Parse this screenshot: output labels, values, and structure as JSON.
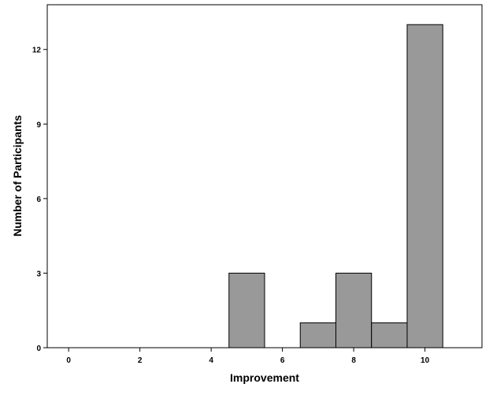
{
  "chart_data": {
    "type": "bar",
    "subtype": "histogram",
    "xlabel": "Improvement",
    "ylabel": "Number of Participants",
    "xlim": [
      -0.6,
      11.6
    ],
    "ylim": [
      0,
      13.8
    ],
    "x_ticks": [
      0,
      2,
      4,
      6,
      8,
      10
    ],
    "y_ticks": [
      0,
      3,
      6,
      9,
      12
    ],
    "bin_width": 1,
    "bins": [
      {
        "center": 5,
        "count": 3
      },
      {
        "center": 7,
        "count": 1
      },
      {
        "center": 8,
        "count": 3
      },
      {
        "center": 9,
        "count": 1
      },
      {
        "center": 10,
        "count": 13
      }
    ],
    "bar_color": "#999999",
    "bar_edge_color": "#000000",
    "grid": false,
    "legend": "none"
  }
}
